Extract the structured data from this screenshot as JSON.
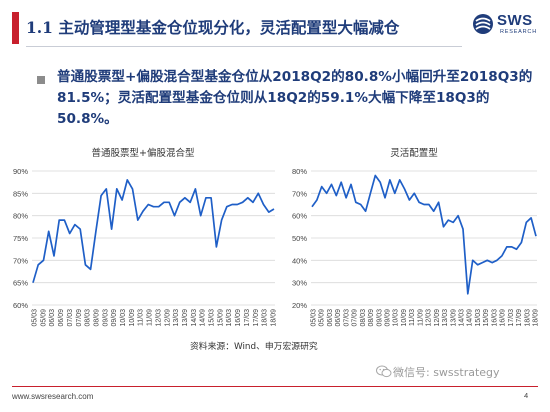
{
  "header": {
    "title": "1.1 主动管理型基金仓位现分化，灵活配置型大幅减仓",
    "accent_color": "#c8202d",
    "title_color": "#1f3c7a"
  },
  "logo": {
    "text": "SWS",
    "sub": "RESEARCH",
    "icon": "sws-logo-icon"
  },
  "summary": {
    "text": "普通股票型+偏股混合型基金仓位从2018Q2的80.8%小幅回升至2018Q3的81.5%；灵活配置型基金仓位则从18Q2的59.1%大幅下降至18Q3的50.8%。"
  },
  "chart_data": [
    {
      "type": "line",
      "title": "普通股票型+偏股混合型",
      "xlabel": "",
      "ylabel": "",
      "ylim": [
        0.6,
        0.9
      ],
      "y_tick_labels": [
        "60%",
        "65%",
        "70%",
        "75%",
        "80%",
        "85%",
        "90%"
      ],
      "x_tick_labels": [
        "05/03",
        "05/09",
        "06/03",
        "06/09",
        "07/03",
        "07/09",
        "08/03",
        "08/09",
        "09/03",
        "09/09",
        "10/03",
        "10/09",
        "11/03",
        "11/09",
        "12/03",
        "12/09",
        "13/03",
        "13/09",
        "14/03",
        "14/09",
        "15/03",
        "15/09",
        "16/03",
        "16/09",
        "17/03",
        "17/09",
        "18/03",
        "18/09"
      ],
      "grid": true,
      "line_color": "#1f5fc7",
      "values": [
        0.65,
        0.69,
        0.7,
        0.765,
        0.71,
        0.79,
        0.79,
        0.76,
        0.78,
        0.77,
        0.69,
        0.68,
        0.765,
        0.845,
        0.86,
        0.77,
        0.86,
        0.835,
        0.88,
        0.86,
        0.79,
        0.81,
        0.825,
        0.82,
        0.82,
        0.83,
        0.83,
        0.8,
        0.83,
        0.84,
        0.83,
        0.86,
        0.8,
        0.84,
        0.84,
        0.73,
        0.79,
        0.82,
        0.825,
        0.825,
        0.83,
        0.84,
        0.83,
        0.85,
        0.825,
        0.808,
        0.815
      ]
    },
    {
      "type": "line",
      "title": "灵活配置型",
      "xlabel": "",
      "ylabel": "",
      "ylim": [
        0.2,
        0.8
      ],
      "y_tick_labels": [
        "20%",
        "30%",
        "40%",
        "50%",
        "60%",
        "70%",
        "80%"
      ],
      "x_tick_labels": [
        "05/03",
        "05/09",
        "06/03",
        "06/09",
        "07/03",
        "07/09",
        "08/03",
        "08/09",
        "09/03",
        "09/09",
        "10/03",
        "10/09",
        "11/03",
        "11/09",
        "12/03",
        "12/09",
        "13/03",
        "13/09",
        "14/03",
        "14/09",
        "15/03",
        "15/09",
        "16/03",
        "16/09",
        "17/03",
        "17/09",
        "18/03",
        "18/09"
      ],
      "grid": true,
      "line_color": "#1f5fc7",
      "values": [
        0.64,
        0.67,
        0.73,
        0.7,
        0.74,
        0.69,
        0.75,
        0.68,
        0.74,
        0.66,
        0.65,
        0.62,
        0.7,
        0.78,
        0.75,
        0.68,
        0.76,
        0.7,
        0.76,
        0.72,
        0.67,
        0.7,
        0.66,
        0.65,
        0.65,
        0.62,
        0.66,
        0.55,
        0.58,
        0.57,
        0.6,
        0.54,
        0.25,
        0.4,
        0.38,
        0.39,
        0.4,
        0.39,
        0.4,
        0.42,
        0.46,
        0.46,
        0.45,
        0.48,
        0.57,
        0.59,
        0.508
      ]
    }
  ],
  "source": {
    "text": "资料来源：Wind、申万宏源研究"
  },
  "footer": {
    "url": "www.swsresearch.com",
    "page": "4",
    "wechat": "微信号: swsstrategy"
  }
}
